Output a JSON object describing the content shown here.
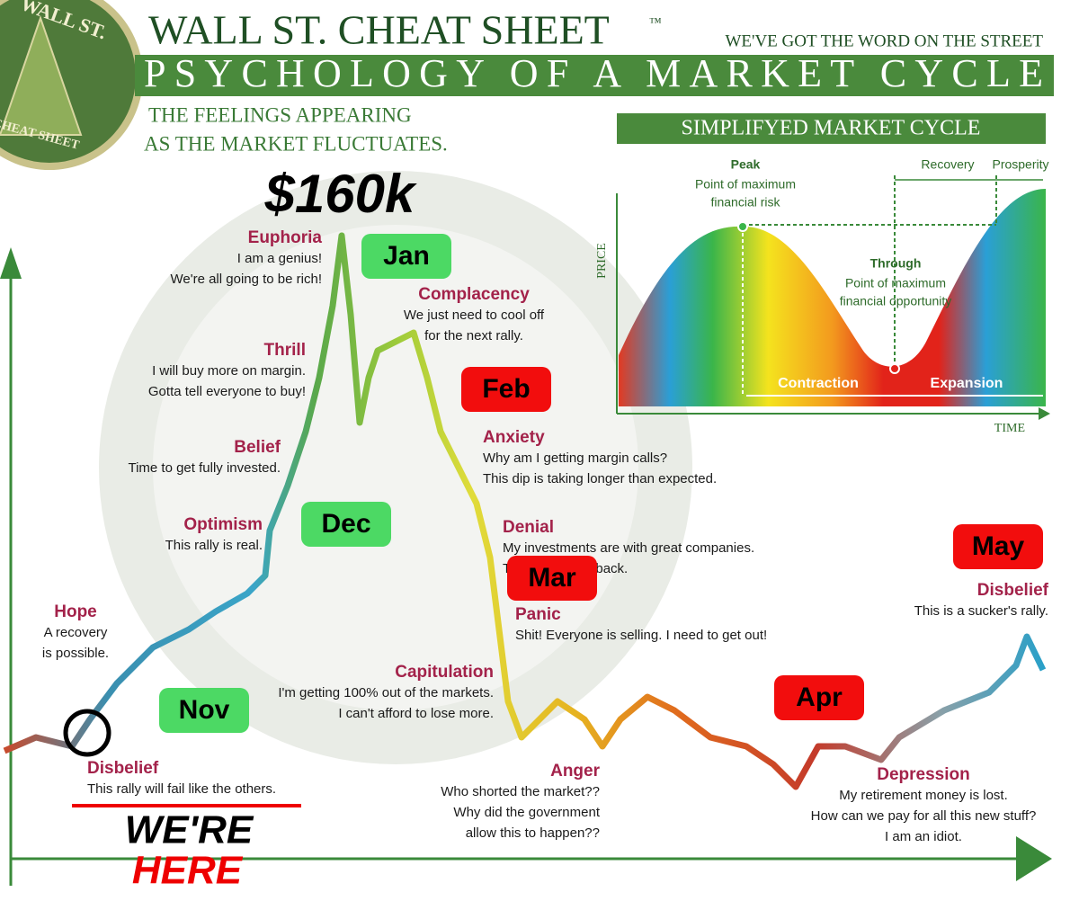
{
  "logo": {
    "top": "WALL ST.",
    "bottom": "CHEAT SHEET"
  },
  "header": {
    "brand": "WALL ST. CHEAT SHEET",
    "trademark": "™",
    "tagline": "WE'VE GOT THE WORD ON THE STREET",
    "title": "PSYCHOLOGY OF A MARKET CYCLE",
    "subtitle": [
      "THE FEELINGS APPEARING",
      "AS THE MARKET FLUCTUATES."
    ]
  },
  "price": "$160k",
  "stages": [
    {
      "label": "Euphoria",
      "lines": [
        "I am a genius!",
        "We're all going to be rich!"
      ]
    },
    {
      "label": "Complacency",
      "lines": [
        "We just need to cool off",
        "for the next rally."
      ]
    },
    {
      "label": "Thrill",
      "lines": [
        "I will buy more on margin.",
        "Gotta tell everyone to buy!"
      ]
    },
    {
      "label": "Belief",
      "lines": [
        "Time to get fully invested."
      ]
    },
    {
      "label": "Optimism",
      "lines": [
        "This rally is real."
      ]
    },
    {
      "label": "Hope",
      "lines": [
        "A recovery",
        "is possible."
      ]
    },
    {
      "label": "Anxiety",
      "lines": [
        "Why am I getting margin calls?",
        "This dip is taking longer than expected."
      ]
    },
    {
      "label": "Denial",
      "lines": [
        "My investments are with great companies.",
        "They will come back."
      ]
    },
    {
      "label": "Panic",
      "lines": [
        "Shit! Everyone is selling. I need to get out!"
      ]
    },
    {
      "label": "Capitulation",
      "lines": [
        "I'm getting 100% out of the markets.",
        "I can't afford to lose more."
      ]
    },
    {
      "label": "Anger",
      "lines": [
        "Who shorted the market??",
        "Why did the government",
        "allow this to happen??"
      ]
    },
    {
      "label": "Disbelief",
      "lines": [
        "This rally will fail like the others."
      ]
    },
    {
      "label": "Depression",
      "lines": [
        "My retirement money is lost.",
        "How can we pay for all this new stuff?",
        "I am an idiot."
      ]
    },
    {
      "label": "Disbelief",
      "lines": [
        "This is a sucker's rally."
      ]
    }
  ],
  "months": [
    {
      "label": "Jan",
      "color": "#4cd964"
    },
    {
      "label": "Feb",
      "color": "#f20d0d"
    },
    {
      "label": "Dec",
      "color": "#4cd964"
    },
    {
      "label": "Mar",
      "color": "#f20d0d"
    },
    {
      "label": "Nov",
      "color": "#4cd964"
    },
    {
      "label": "Apr",
      "color": "#f20d0d"
    },
    {
      "label": "May",
      "color": "#f20d0d"
    }
  ],
  "inset": {
    "title": "SIMPLIFYED MARKET CYCLE",
    "y_label": "PRICE",
    "x_label": "TIME",
    "peak": {
      "label": "Peak",
      "lines": [
        "Point of maximum",
        "financial risk"
      ]
    },
    "trough": {
      "label": "Through",
      "lines": [
        "Point of maximum",
        "financial opportunity"
      ]
    },
    "recovery": "Recovery",
    "prosperity": "Prosperity",
    "contraction": "Contraction",
    "expansion": "Expansion"
  },
  "callout": {
    "line1": "WE'RE",
    "line2": "HERE"
  }
}
